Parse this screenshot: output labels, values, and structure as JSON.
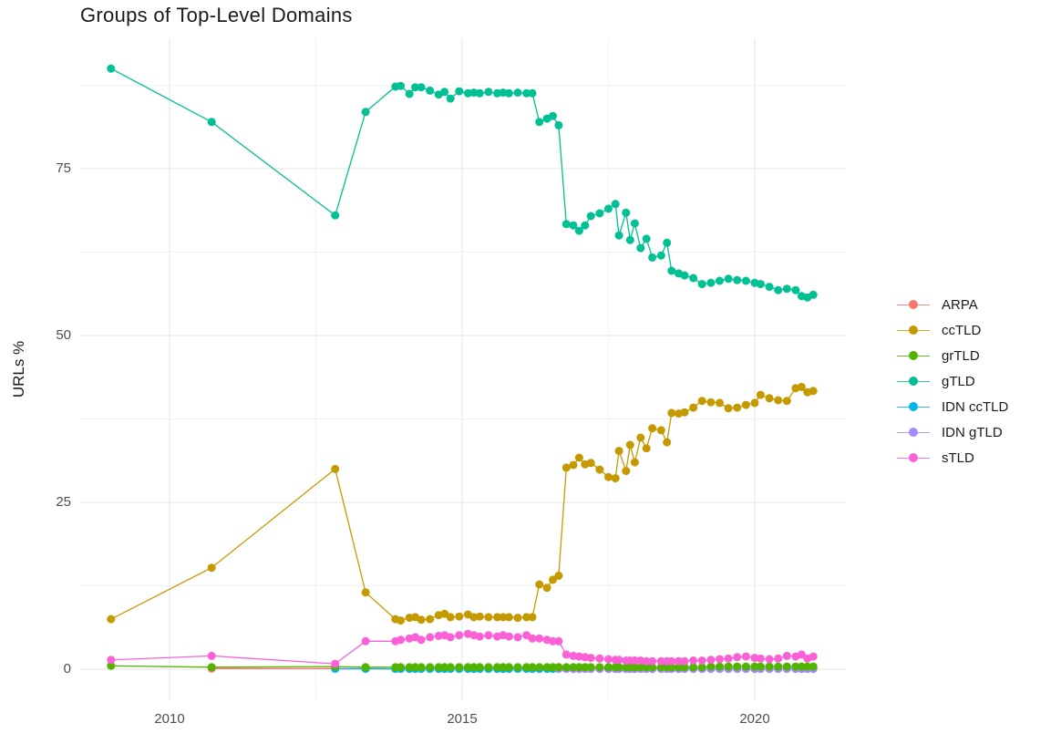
{
  "chart": {
    "title": "Groups of Top-Level Domains",
    "y_axis_label": "URLs %"
  },
  "chart_data": {
    "type": "line",
    "title": "Groups of Top-Level Domains",
    "xlabel": "",
    "ylabel": "URLs %",
    "x_ticks": [
      2010,
      2015,
      2020
    ],
    "x_minor_ticks": [
      2012.5,
      2017.5
    ],
    "y_ticks": [
      0,
      25,
      50,
      75
    ],
    "y_minor_ticks": [
      12.5,
      37.5,
      62.5,
      87.5
    ],
    "xlim": [
      2008.5,
      2021.6
    ],
    "ylim": [
      -4.5,
      94.5
    ],
    "grid": true,
    "legend_position": "right",
    "x": [
      2009.0,
      2010.72,
      2012.83,
      2013.35,
      2013.86,
      2013.95,
      2014.1,
      2014.2,
      2014.3,
      2014.45,
      2014.6,
      2014.7,
      2014.8,
      2014.95,
      2015.1,
      2015.2,
      2015.3,
      2015.45,
      2015.6,
      2015.7,
      2015.8,
      2015.95,
      2016.1,
      2016.2,
      2016.32,
      2016.45,
      2016.55,
      2016.65,
      2016.78,
      2016.9,
      2017.0,
      2017.1,
      2017.2,
      2017.35,
      2017.5,
      2017.62,
      2017.68,
      2017.8,
      2017.87,
      2017.95,
      2018.05,
      2018.15,
      2018.25,
      2018.4,
      2018.5,
      2018.58,
      2018.7,
      2018.8,
      2018.95,
      2019.1,
      2019.25,
      2019.4,
      2019.55,
      2019.7,
      2019.85,
      2020.0,
      2020.1,
      2020.25,
      2020.4,
      2020.55,
      2020.7,
      2020.8,
      2020.9,
      2021.0
    ],
    "series": [
      {
        "name": "ARPA",
        "color": "#F8766D",
        "values": [
          null,
          0.1,
          0.1,
          0.1,
          0.05,
          0.05,
          0.05,
          0.05,
          0.05,
          0.05,
          0.05,
          0.05,
          0.05,
          0.05,
          0.05,
          0.05,
          0.05,
          0.05,
          0.05,
          0.05,
          0.05,
          0.05,
          0.05,
          0.05,
          0.05,
          0.05,
          0.05,
          0.05,
          0.05,
          0.05,
          0.05,
          0.05,
          0.05,
          0.05,
          0.05,
          0.05,
          0.05,
          0.05,
          0.05,
          0.05,
          0.05,
          0.05,
          0.05,
          0.05,
          0.05,
          0.05,
          0.05,
          0.05,
          0.05,
          0.05,
          0.05,
          0.05,
          0.05,
          0.05,
          0.05,
          0.05,
          0.05,
          0.05,
          0.05,
          0.05,
          0.05,
          0.05,
          0.05,
          0.05
        ]
      },
      {
        "name": "ccTLD",
        "color": "#C49A00",
        "values": [
          7.5,
          15.2,
          30.0,
          11.5,
          7.5,
          7.3,
          7.7,
          7.8,
          7.4,
          7.5,
          8.1,
          8.3,
          7.8,
          7.9,
          8.2,
          7.8,
          7.9,
          7.8,
          7.8,
          7.8,
          7.8,
          7.7,
          7.8,
          7.8,
          12.7,
          12.2,
          13.4,
          14.0,
          30.2,
          30.6,
          31.7,
          30.7,
          30.9,
          29.9,
          28.8,
          28.6,
          32.7,
          29.7,
          33.6,
          31.0,
          34.7,
          33.1,
          36.1,
          35.8,
          34.0,
          38.4,
          38.3,
          38.5,
          39.2,
          40.2,
          40.0,
          39.9,
          39.1,
          39.2,
          39.6,
          39.9,
          41.1,
          40.6,
          40.3,
          40.2,
          42.1,
          42.3,
          41.5,
          41.7
        ]
      },
      {
        "name": "grTLD",
        "color": "#53B400",
        "values": [
          0.5,
          0.3,
          0.4,
          0.3,
          0.3,
          0.3,
          0.3,
          0.3,
          0.3,
          0.3,
          0.3,
          0.3,
          0.3,
          0.3,
          0.3,
          0.3,
          0.3,
          0.3,
          0.3,
          0.3,
          0.3,
          0.3,
          0.3,
          0.3,
          0.3,
          0.3,
          0.3,
          0.3,
          0.3,
          0.3,
          0.3,
          0.3,
          0.3,
          0.3,
          0.3,
          0.3,
          0.3,
          0.3,
          0.3,
          0.3,
          0.3,
          0.3,
          0.3,
          0.3,
          0.3,
          0.3,
          0.3,
          0.3,
          0.3,
          0.3,
          0.4,
          0.4,
          0.4,
          0.4,
          0.4,
          0.4,
          0.4,
          0.4,
          0.4,
          0.4,
          0.4,
          0.4,
          0.4,
          0.4
        ]
      },
      {
        "name": "gTLD",
        "color": "#00C094",
        "values": [
          90.0,
          82.0,
          68.0,
          83.5,
          87.3,
          87.4,
          86.2,
          87.2,
          87.2,
          86.7,
          86.1,
          86.5,
          85.5,
          86.6,
          86.3,
          86.4,
          86.3,
          86.5,
          86.3,
          86.4,
          86.3,
          86.4,
          86.3,
          86.3,
          82.0,
          82.5,
          82.9,
          81.5,
          66.7,
          66.5,
          65.7,
          66.5,
          67.9,
          68.3,
          69.0,
          69.7,
          65.0,
          68.4,
          64.3,
          66.8,
          63.1,
          64.5,
          61.7,
          62.0,
          63.9,
          59.7,
          59.3,
          59.0,
          58.6,
          57.7,
          57.9,
          58.2,
          58.5,
          58.3,
          58.2,
          57.9,
          57.7,
          57.3,
          56.8,
          57.0,
          56.8,
          55.9,
          55.7,
          56.1
        ]
      },
      {
        "name": "IDN ccTLD",
        "color": "#00B6EB",
        "values": [
          null,
          null,
          0.05,
          0.05,
          0.05,
          0.05,
          0.05,
          0.05,
          0.05,
          0.05,
          0.05,
          0.05,
          0.05,
          0.05,
          0.05,
          0.05,
          0.05,
          0.05,
          0.05,
          0.05,
          0.05,
          0.05,
          0.05,
          0.05,
          0.05,
          0.05,
          0.05,
          0.05,
          0.05,
          0.05,
          0.05,
          0.05,
          0.05,
          0.05,
          0.05,
          0.05,
          0.05,
          0.05,
          0.05,
          0.05,
          0.05,
          0.05,
          0.05,
          0.05,
          0.05,
          0.05,
          0.05,
          0.05,
          0.05,
          0.05,
          0.05,
          0.05,
          0.05,
          0.05,
          0.05,
          0.05,
          0.05,
          0.05,
          0.05,
          0.05,
          0.05,
          0.05,
          0.05,
          0.05
        ]
      },
      {
        "name": "IDN gTLD",
        "color": "#A58AFF",
        "values": [
          null,
          null,
          null,
          null,
          null,
          null,
          null,
          null,
          null,
          null,
          null,
          null,
          null,
          null,
          null,
          null,
          null,
          null,
          null,
          null,
          null,
          null,
          null,
          null,
          null,
          null,
          null,
          0.05,
          0.05,
          0.05,
          0.05,
          0.05,
          0.05,
          0.05,
          0.05,
          0.05,
          0.05,
          0.05,
          0.05,
          0.05,
          0.05,
          0.05,
          0.05,
          0.05,
          0.05,
          0.05,
          0.05,
          0.05,
          0.05,
          0.05,
          0.05,
          0.05,
          0.05,
          0.05,
          0.05,
          0.05,
          0.05,
          0.05,
          0.05,
          0.05,
          0.05,
          0.05,
          0.05,
          0.05
        ]
      },
      {
        "name": "sTLD",
        "color": "#FB61D7",
        "values": [
          1.4,
          2.0,
          0.8,
          4.2,
          4.2,
          4.4,
          4.6,
          4.8,
          4.4,
          4.8,
          5.0,
          5.1,
          4.8,
          5.1,
          5.3,
          5.1,
          4.9,
          5.1,
          4.9,
          5.1,
          4.9,
          4.8,
          5.1,
          4.6,
          4.6,
          4.4,
          4.2,
          4.2,
          2.2,
          2.0,
          1.9,
          1.8,
          1.7,
          1.6,
          1.5,
          1.4,
          1.4,
          1.3,
          1.3,
          1.3,
          1.3,
          1.2,
          1.2,
          1.2,
          1.2,
          1.2,
          1.2,
          1.2,
          1.3,
          1.3,
          1.4,
          1.5,
          1.6,
          1.8,
          1.9,
          1.7,
          1.6,
          1.5,
          1.6,
          2.0,
          1.9,
          2.2,
          1.6,
          1.9
        ]
      }
    ],
    "draw_order": [
      "ARPA",
      "IDN ccTLD",
      "IDN gTLD",
      "grTLD",
      "ccTLD",
      "gTLD",
      "sTLD"
    ],
    "colors": {
      "grid_major": "#E6E6E6",
      "grid_minor": "#F2F2F2",
      "tick_text": "#4d4d4d",
      "title_text": "#1a1a1a"
    }
  }
}
